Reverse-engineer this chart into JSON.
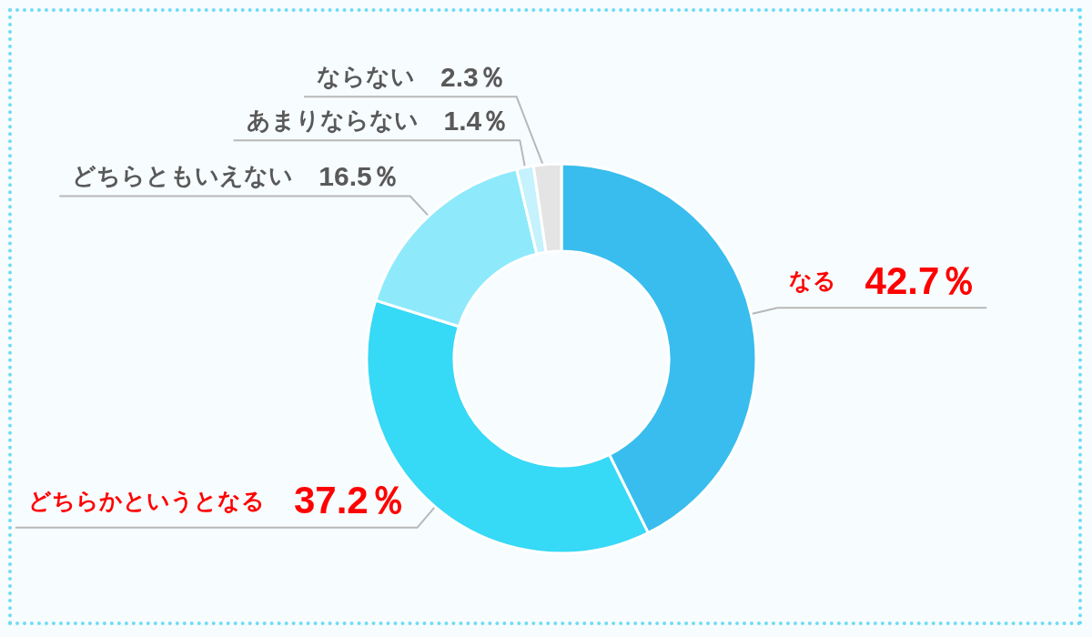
{
  "chart_data": {
    "type": "donut",
    "categories": [
      "なる",
      "どちらかというとなる",
      "どちらともいえない",
      "あまりならない",
      "ならない"
    ],
    "values": [
      42.7,
      37.2,
      16.5,
      1.4,
      2.3
    ],
    "colors": [
      "#38bdee",
      "#36d9f6",
      "#8eeafb",
      "#c5f2fc",
      "#e4e4e4"
    ],
    "value_labels": [
      "42.7％",
      "37.2％",
      "16.5％",
      "1.4％",
      "2.3％"
    ]
  }
}
